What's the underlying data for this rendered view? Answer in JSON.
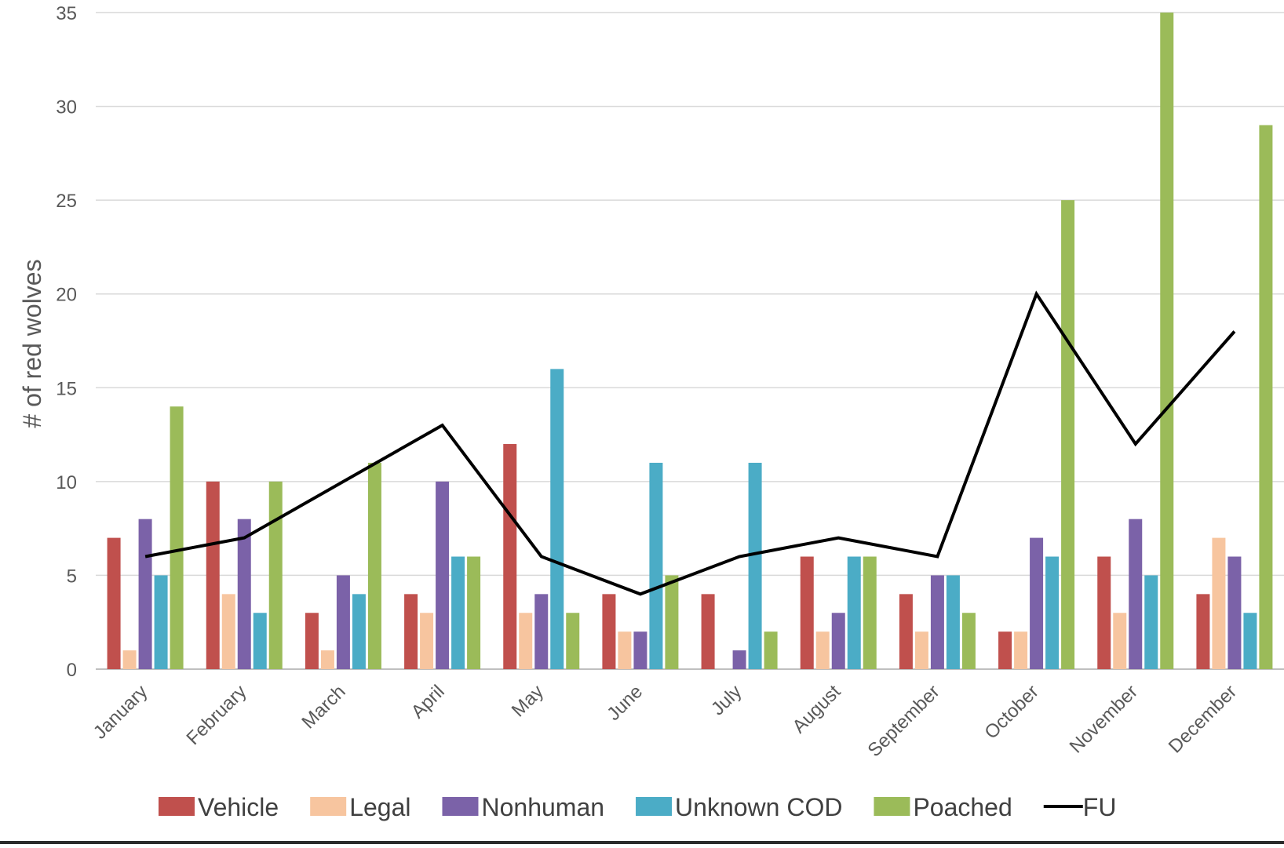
{
  "chart_data": {
    "type": "bar",
    "title": "",
    "xlabel": "",
    "ylabel": "# of red wolves",
    "ylim": [
      0,
      35
    ],
    "yticks": [
      0,
      5,
      10,
      15,
      20,
      25,
      30,
      35
    ],
    "grid": "horizontal",
    "legend_position": "bottom",
    "categories": [
      "January",
      "February",
      "March",
      "April",
      "May",
      "June",
      "July",
      "August",
      "September",
      "October",
      "November",
      "December"
    ],
    "series": [
      {
        "name": "Vehicle",
        "type": "bar",
        "color": "#c0504d",
        "values": [
          7,
          10,
          3,
          4,
          12,
          4,
          4,
          6,
          4,
          2,
          6,
          4
        ]
      },
      {
        "name": "Legal",
        "type": "bar",
        "color": "#f7c59f",
        "values": [
          1,
          4,
          1,
          3,
          3,
          2,
          0,
          2,
          2,
          2,
          3,
          7
        ]
      },
      {
        "name": "Nonhuman",
        "type": "bar",
        "color": "#7b62a8",
        "values": [
          8,
          8,
          5,
          10,
          4,
          2,
          1,
          3,
          5,
          7,
          8,
          6
        ]
      },
      {
        "name": "Unknown COD",
        "type": "bar",
        "color": "#4bacc6",
        "values": [
          5,
          3,
          4,
          6,
          16,
          11,
          11,
          6,
          5,
          6,
          5,
          3
        ]
      },
      {
        "name": "Poached",
        "type": "bar",
        "color": "#9bbb59",
        "values": [
          14,
          10,
          11,
          6,
          3,
          5,
          2,
          6,
          3,
          25,
          35,
          29
        ]
      },
      {
        "name": "FU",
        "type": "line",
        "color": "#000000",
        "values": [
          6,
          7,
          10,
          13,
          6,
          4,
          6,
          7,
          6,
          20,
          12,
          18
        ]
      }
    ]
  }
}
